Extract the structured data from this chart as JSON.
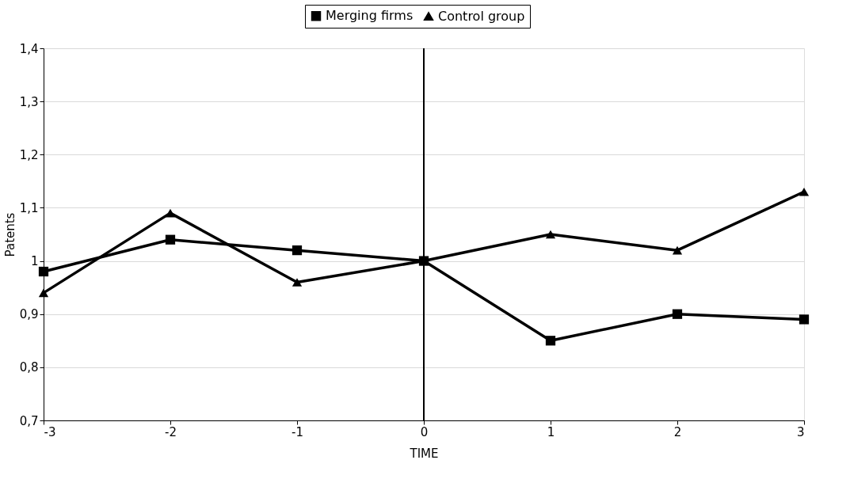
{
  "chart_data": {
    "type": "line",
    "x": [
      -3,
      -2,
      -1,
      0,
      1,
      2,
      3
    ],
    "series": [
      {
        "name": "Merging firms",
        "color": "#000000",
        "marker": "square",
        "values": [
          0.98,
          1.04,
          1.02,
          1.0,
          0.85,
          0.9,
          0.89
        ]
      },
      {
        "name": "Control group",
        "color": "#000000",
        "marker": "triangle",
        "values": [
          0.94,
          1.09,
          0.96,
          1.0,
          1.05,
          1.02,
          1.13
        ]
      }
    ],
    "xlabel": "TIME",
    "ylabel": "Patents",
    "xlim": [
      -3,
      3
    ],
    "xticks": [
      -3,
      -2,
      -1,
      0,
      1,
      2,
      3
    ],
    "ylim": [
      0.7,
      1.4
    ],
    "yticks": [
      {
        "value": 0.7,
        "label": "0,7"
      },
      {
        "value": 0.8,
        "label": "0,8"
      },
      {
        "value": 0.9,
        "label": "0,9"
      },
      1,
      {
        "value": 1.1,
        "label": "1,1"
      },
      {
        "value": 1.2,
        "label": "1,2"
      },
      {
        "value": 1.3,
        "label": "1,3"
      },
      {
        "value": 1.4,
        "label": "1,4"
      }
    ],
    "ref_lines": [
      {
        "axis": "x",
        "value": 0,
        "color": "#000000"
      }
    ],
    "grid": "y",
    "legend": "top",
    "line_style": "solid"
  }
}
